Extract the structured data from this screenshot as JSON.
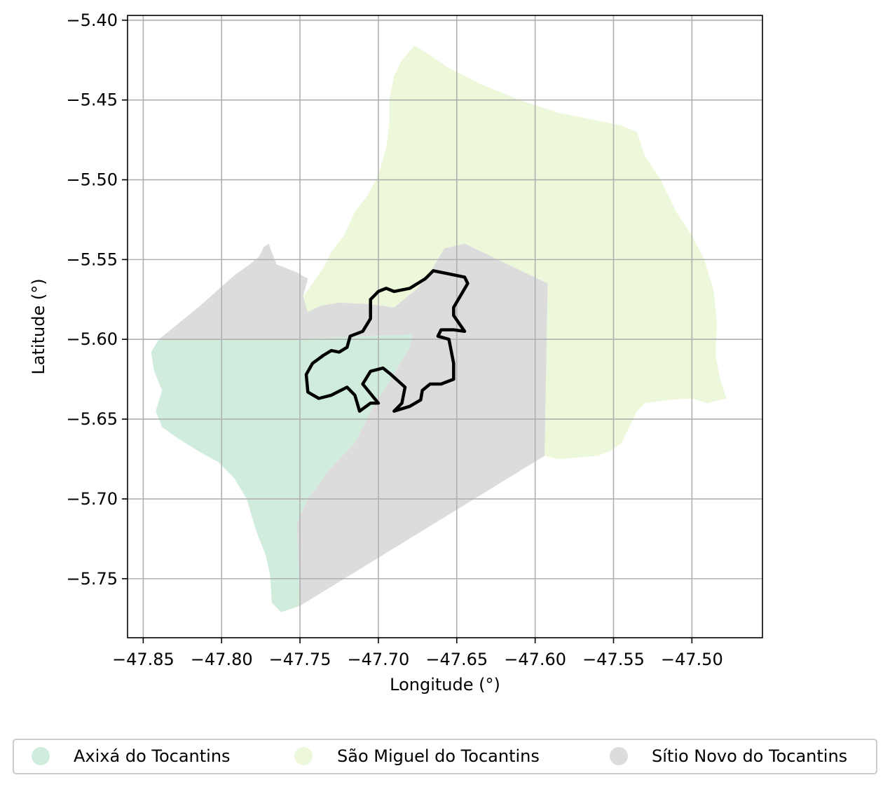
{
  "chart_data": {
    "type": "map",
    "xlabel": "Longitude (°)",
    "ylabel": "Latitude (°)",
    "xlim": [
      -47.86,
      -47.455
    ],
    "ylim": [
      -5.787,
      -5.397
    ],
    "grid": true,
    "xticks": [
      {
        "value": -47.85,
        "label": "−47.85"
      },
      {
        "value": -47.8,
        "label": "−47.80"
      },
      {
        "value": -47.75,
        "label": "−47.75"
      },
      {
        "value": -47.7,
        "label": "−47.70"
      },
      {
        "value": -47.65,
        "label": "−47.65"
      },
      {
        "value": -47.6,
        "label": "−47.60"
      },
      {
        "value": -47.55,
        "label": "−47.55"
      },
      {
        "value": -47.5,
        "label": "−47.50"
      }
    ],
    "yticks": [
      {
        "value": -5.4,
        "label": "−5.40"
      },
      {
        "value": -5.45,
        "label": "−5.45"
      },
      {
        "value": -5.5,
        "label": "−5.50"
      },
      {
        "value": -5.55,
        "label": "−5.55"
      },
      {
        "value": -5.6,
        "label": "−5.60"
      },
      {
        "value": -5.65,
        "label": "−5.65"
      },
      {
        "value": -5.7,
        "label": "−5.70"
      },
      {
        "value": -5.75,
        "label": "−5.75"
      }
    ],
    "legend_position": "bottom, outside",
    "regions": [
      {
        "name": "São Miguel do Tocantins",
        "color": "#edf8da",
        "coords": [
          [
            -47.677,
            -5.416
          ],
          [
            -47.67,
            -5.42
          ],
          [
            -47.655,
            -5.43
          ],
          [
            -47.635,
            -5.44
          ],
          [
            -47.61,
            -5.45
          ],
          [
            -47.585,
            -5.458
          ],
          [
            -47.565,
            -5.462
          ],
          [
            -47.545,
            -5.466
          ],
          [
            -47.535,
            -5.47
          ],
          [
            -47.53,
            -5.485
          ],
          [
            -47.52,
            -5.5
          ],
          [
            -47.51,
            -5.52
          ],
          [
            -47.5,
            -5.535
          ],
          [
            -47.492,
            -5.55
          ],
          [
            -47.486,
            -5.57
          ],
          [
            -47.484,
            -5.59
          ],
          [
            -47.485,
            -5.61
          ],
          [
            -47.482,
            -5.625
          ],
          [
            -47.478,
            -5.637
          ],
          [
            -47.49,
            -5.64
          ],
          [
            -47.5,
            -5.637
          ],
          [
            -47.515,
            -5.638
          ],
          [
            -47.53,
            -5.64
          ],
          [
            -47.535,
            -5.645
          ],
          [
            -47.54,
            -5.655
          ],
          [
            -47.545,
            -5.665
          ],
          [
            -47.552,
            -5.67
          ],
          [
            -47.56,
            -5.673
          ],
          [
            -47.572,
            -5.674
          ],
          [
            -47.585,
            -5.675
          ],
          [
            -47.594,
            -5.673
          ],
          [
            -47.592,
            -5.565
          ],
          [
            -47.645,
            -5.54
          ],
          [
            -47.658,
            -5.543
          ],
          [
            -47.665,
            -5.555
          ],
          [
            -47.675,
            -5.568
          ],
          [
            -47.69,
            -5.58
          ],
          [
            -47.705,
            -5.578
          ],
          [
            -47.725,
            -5.577
          ],
          [
            -47.737,
            -5.579
          ],
          [
            -47.745,
            -5.583
          ],
          [
            -47.748,
            -5.573
          ],
          [
            -47.742,
            -5.565
          ],
          [
            -47.735,
            -5.555
          ],
          [
            -47.73,
            -5.545
          ],
          [
            -47.722,
            -5.535
          ],
          [
            -47.715,
            -5.52
          ],
          [
            -47.707,
            -5.51
          ],
          [
            -47.7,
            -5.497
          ],
          [
            -47.695,
            -5.48
          ],
          [
            -47.693,
            -5.465
          ],
          [
            -47.693,
            -5.45
          ],
          [
            -47.69,
            -5.435
          ],
          [
            -47.685,
            -5.425
          ]
        ]
      },
      {
        "name": "Sítio Novo do Tocantins",
        "color": "#dcdcdc",
        "coords": [
          [
            -47.84,
            -5.6
          ],
          [
            -47.815,
            -5.58
          ],
          [
            -47.792,
            -5.56
          ],
          [
            -47.782,
            -5.553
          ],
          [
            -47.776,
            -5.548
          ],
          [
            -47.773,
            -5.542
          ],
          [
            -47.77,
            -5.54
          ],
          [
            -47.765,
            -5.553
          ],
          [
            -47.752,
            -5.558
          ],
          [
            -47.745,
            -5.562
          ],
          [
            -47.748,
            -5.573
          ],
          [
            -47.745,
            -5.583
          ],
          [
            -47.737,
            -5.579
          ],
          [
            -47.725,
            -5.577
          ],
          [
            -47.705,
            -5.578
          ],
          [
            -47.69,
            -5.58
          ],
          [
            -47.675,
            -5.568
          ],
          [
            -47.665,
            -5.555
          ],
          [
            -47.658,
            -5.543
          ],
          [
            -47.645,
            -5.54
          ],
          [
            -47.592,
            -5.565
          ],
          [
            -47.594,
            -5.673
          ],
          [
            -47.75,
            -5.767
          ],
          [
            -47.752,
            -5.715
          ],
          [
            -47.745,
            -5.7
          ],
          [
            -47.73,
            -5.68
          ],
          [
            -47.715,
            -5.665
          ],
          [
            -47.705,
            -5.645
          ],
          [
            -47.692,
            -5.625
          ],
          [
            -47.68,
            -5.605
          ],
          [
            -47.678,
            -5.597
          ],
          [
            -47.76,
            -5.6
          ]
        ]
      },
      {
        "name": "Axixá do Tocantins",
        "color": "#d0ecdd",
        "coords": [
          [
            -47.84,
            -5.6
          ],
          [
            -47.76,
            -5.6
          ],
          [
            -47.678,
            -5.597
          ],
          [
            -47.68,
            -5.605
          ],
          [
            -47.692,
            -5.625
          ],
          [
            -47.705,
            -5.645
          ],
          [
            -47.715,
            -5.665
          ],
          [
            -47.73,
            -5.68
          ],
          [
            -47.745,
            -5.7
          ],
          [
            -47.752,
            -5.715
          ],
          [
            -47.75,
            -5.767
          ],
          [
            -47.762,
            -5.771
          ],
          [
            -47.768,
            -5.765
          ],
          [
            -47.769,
            -5.748
          ],
          [
            -47.772,
            -5.735
          ],
          [
            -47.778,
            -5.72
          ],
          [
            -47.784,
            -5.7
          ],
          [
            -47.792,
            -5.687
          ],
          [
            -47.802,
            -5.677
          ],
          [
            -47.815,
            -5.67
          ],
          [
            -47.828,
            -5.662
          ],
          [
            -47.838,
            -5.655
          ],
          [
            -47.842,
            -5.645
          ],
          [
            -47.838,
            -5.632
          ],
          [
            -47.843,
            -5.62
          ],
          [
            -47.845,
            -5.608
          ]
        ]
      }
    ],
    "highlight_outline": {
      "color": "#000000",
      "coords": [
        [
          -47.746,
          -5.622
        ],
        [
          -47.745,
          -5.633
        ],
        [
          -47.738,
          -5.637
        ],
        [
          -47.73,
          -5.635
        ],
        [
          -47.72,
          -5.63
        ],
        [
          -47.715,
          -5.635
        ],
        [
          -47.712,
          -5.645
        ],
        [
          -47.705,
          -5.64
        ],
        [
          -47.7,
          -5.64
        ],
        [
          -47.71,
          -5.628
        ],
        [
          -47.705,
          -5.62
        ],
        [
          -47.697,
          -5.618
        ],
        [
          -47.692,
          -5.622
        ],
        [
          -47.683,
          -5.63
        ],
        [
          -47.685,
          -5.64
        ],
        [
          -47.69,
          -5.645
        ],
        [
          -47.68,
          -5.642
        ],
        [
          -47.673,
          -5.638
        ],
        [
          -47.672,
          -5.632
        ],
        [
          -47.667,
          -5.628
        ],
        [
          -47.66,
          -5.628
        ],
        [
          -47.652,
          -5.625
        ],
        [
          -47.652,
          -5.615
        ],
        [
          -47.655,
          -5.6
        ],
        [
          -47.662,
          -5.598
        ],
        [
          -47.66,
          -5.594
        ],
        [
          -47.652,
          -5.594
        ],
        [
          -47.645,
          -5.595
        ],
        [
          -47.652,
          -5.585
        ],
        [
          -47.652,
          -5.58
        ],
        [
          -47.643,
          -5.565
        ],
        [
          -47.645,
          -5.561
        ],
        [
          -47.665,
          -5.557
        ],
        [
          -47.67,
          -5.562
        ],
        [
          -47.675,
          -5.565
        ],
        [
          -47.68,
          -5.568
        ],
        [
          -47.69,
          -5.57
        ],
        [
          -47.695,
          -5.568
        ],
        [
          -47.7,
          -5.57
        ],
        [
          -47.705,
          -5.575
        ],
        [
          -47.705,
          -5.587
        ],
        [
          -47.71,
          -5.595
        ],
        [
          -47.718,
          -5.598
        ],
        [
          -47.72,
          -5.605
        ],
        [
          -47.725,
          -5.608
        ],
        [
          -47.73,
          -5.607
        ],
        [
          -47.735,
          -5.61
        ],
        [
          -47.742,
          -5.615
        ]
      ]
    }
  },
  "legend": {
    "items": [
      {
        "label": "Axixá do Tocantins",
        "color": "#d0ecdd"
      },
      {
        "label": "São Miguel do Tocantins",
        "color": "#edf8da"
      },
      {
        "label": "Sítio Novo do Tocantins",
        "color": "#dcdcdc"
      }
    ]
  }
}
